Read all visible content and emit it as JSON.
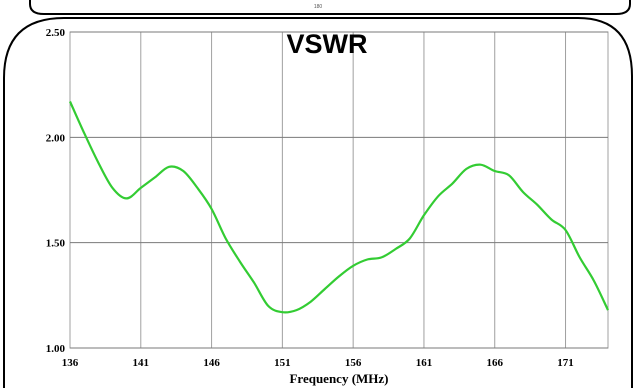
{
  "top_fragment_label": "180",
  "chart_data": {
    "type": "line",
    "title": "VSWR",
    "xlabel": "Frequency (MHz)",
    "ylabel": "",
    "xlim": [
      136,
      174
    ],
    "ylim": [
      1.0,
      2.5
    ],
    "grid": true,
    "x_ticks": [
      "136",
      "141",
      "146",
      "151",
      "156",
      "161",
      "166",
      "171"
    ],
    "y_ticks": [
      "1.00",
      "1.50",
      "2.00",
      "2.50"
    ],
    "series": [
      {
        "color": "#33cc33",
        "points": [
          [
            136,
            2.17
          ],
          [
            137,
            2.02
          ],
          [
            138,
            1.88
          ],
          [
            139,
            1.76
          ],
          [
            140,
            1.71
          ],
          [
            141,
            1.76
          ],
          [
            142,
            1.81
          ],
          [
            143,
            1.86
          ],
          [
            144,
            1.84
          ],
          [
            145,
            1.76
          ],
          [
            146,
            1.66
          ],
          [
            147,
            1.52
          ],
          [
            148,
            1.41
          ],
          [
            149,
            1.31
          ],
          [
            150,
            1.2
          ],
          [
            151,
            1.17
          ],
          [
            152,
            1.18
          ],
          [
            153,
            1.22
          ],
          [
            154,
            1.28
          ],
          [
            155,
            1.34
          ],
          [
            156,
            1.39
          ],
          [
            157,
            1.42
          ],
          [
            158,
            1.43
          ],
          [
            159,
            1.47
          ],
          [
            160,
            1.52
          ],
          [
            161,
            1.63
          ],
          [
            162,
            1.72
          ],
          [
            163,
            1.78
          ],
          [
            164,
            1.85
          ],
          [
            165,
            1.87
          ],
          [
            166,
            1.84
          ],
          [
            167,
            1.82
          ],
          [
            168,
            1.74
          ],
          [
            169,
            1.68
          ],
          [
            170,
            1.61
          ],
          [
            171,
            1.56
          ],
          [
            172,
            1.43
          ],
          [
            173,
            1.32
          ],
          [
            174,
            1.18
          ]
        ]
      }
    ]
  }
}
